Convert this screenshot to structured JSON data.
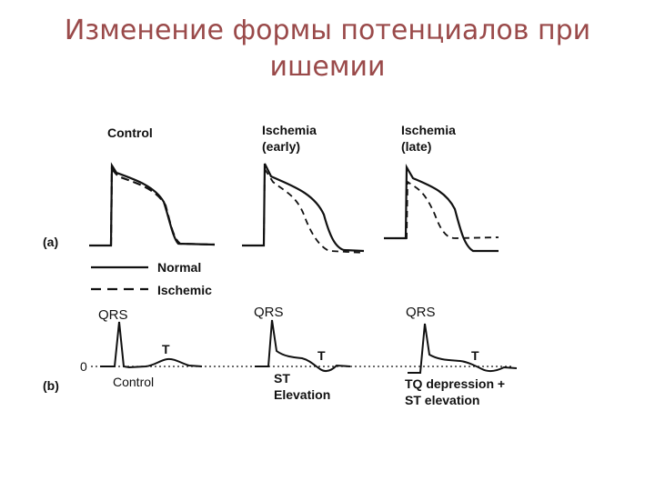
{
  "slide": {
    "title_line1": "Изменение формы потенциалов при",
    "title_line2": "ишемии"
  },
  "panel_a": {
    "label": "(a)",
    "col1": "Control",
    "col2_line1": "Ischemia",
    "col2_line2": "(early)",
    "col3_line1": "Ischemia",
    "col3_line2": "(late)",
    "legend_normal": "Normal",
    "legend_ischemic": "Ischemic"
  },
  "panel_b": {
    "label": "(b)",
    "zero": "0",
    "qrs": "QRS",
    "t": "T",
    "control": "Control",
    "st": "ST",
    "elevation": "Elevation",
    "tq_line1": "TQ depression +",
    "tq_line2": "ST elevation"
  },
  "colors": {
    "title": "#9a4a4a",
    "ink": "#111111"
  }
}
